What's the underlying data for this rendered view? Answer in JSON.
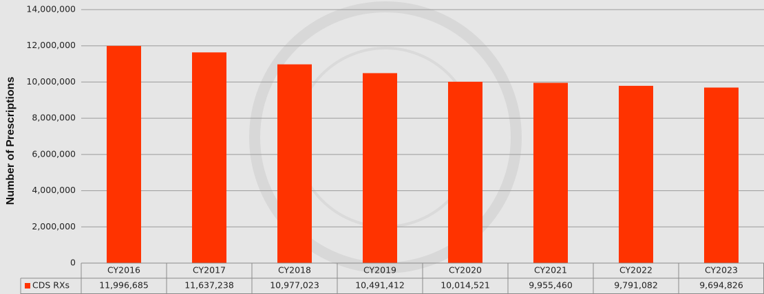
{
  "chart_data": {
    "type": "bar",
    "y_axis_label": "Number of Prescriptions",
    "categories": [
      "CY2016",
      "CY2017",
      "CY2018",
      "CY2019",
      "CY2020",
      "CY2021",
      "CY2022",
      "CY2023"
    ],
    "series": [
      {
        "name": "CDS RXs",
        "color": "#ff3300",
        "values": [
          11996685,
          11637238,
          10977023,
          10491412,
          10014521,
          9955460,
          9791082,
          9694826
        ],
        "value_labels": [
          "11,996,685",
          "11,637,238",
          "10,977,023",
          "10,491,412",
          "10,014,521",
          "9,955,460",
          "9,791,082",
          "9,694,826"
        ]
      }
    ],
    "ylim": [
      0,
      14000000
    ],
    "yticks": [
      0,
      {
        "value": 2000000,
        "label": "2,000,000"
      },
      {
        "value": 4000000,
        "label": "4,000,000"
      },
      {
        "value": 6000000,
        "label": "6,000,000"
      },
      {
        "value": 8000000,
        "label": "8,000,000"
      },
      {
        "value": 10000000,
        "label": "10,000,000"
      },
      {
        "value": 12000000,
        "label": "12,000,000"
      },
      {
        "value": 14000000,
        "label": "14,000,000"
      }
    ],
    "grid": true
  }
}
